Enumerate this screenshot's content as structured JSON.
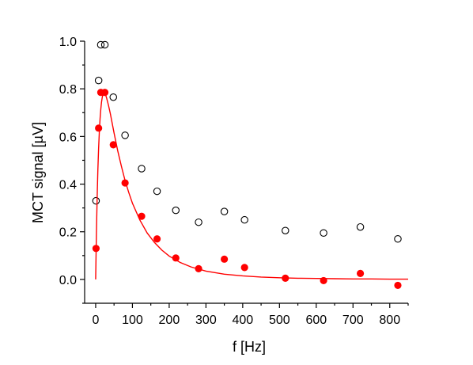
{
  "chart_data": {
    "type": "scatter",
    "title": "",
    "xlabel": "f  [Hz]",
    "ylabel": "MCT signal  [µV]",
    "xlim": [
      -30,
      850
    ],
    "ylim": [
      -0.1,
      1.0
    ],
    "xticks": [
      0,
      100,
      200,
      300,
      400,
      500,
      600,
      700,
      800
    ],
    "yticks": [
      0.0,
      0.2,
      0.4,
      0.6,
      0.8,
      1.0
    ],
    "grid": false,
    "legend": "none",
    "series": [
      {
        "marker": "open-circle",
        "color": "#000000",
        "x": [
          1,
          8,
          14,
          25,
          48,
          80,
          125,
          167,
          218,
          280,
          350,
          405,
          516,
          620,
          720,
          822
        ],
        "y": [
          0.33,
          0.835,
          0.985,
          0.985,
          0.765,
          0.605,
          0.465,
          0.37,
          0.29,
          0.24,
          0.285,
          0.25,
          0.205,
          0.195,
          0.22,
          0.17
        ]
      },
      {
        "marker": "filled-circle",
        "color": "#ff0000",
        "x": [
          1,
          8,
          14,
          25,
          48,
          80,
          125,
          167,
          218,
          280,
          350,
          405,
          516,
          620,
          720,
          822
        ],
        "y": [
          0.13,
          0.635,
          0.785,
          0.785,
          0.565,
          0.405,
          0.265,
          0.17,
          0.09,
          0.045,
          0.085,
          0.05,
          0.005,
          -0.005,
          0.025,
          -0.025
        ]
      },
      {
        "type": "line",
        "color": "#ff0000",
        "x": [
          0,
          2,
          4,
          6,
          8,
          10,
          12,
          14,
          16,
          18,
          20,
          22,
          24,
          26,
          28,
          30,
          35,
          40,
          45,
          50,
          60,
          70,
          80,
          90,
          100,
          120,
          140,
          160,
          180,
          200,
          230,
          260,
          300,
          350,
          400,
          450,
          500,
          550,
          600,
          650,
          700,
          750,
          800,
          850
        ],
        "y": [
          0.0,
          0.19,
          0.34,
          0.46,
          0.55,
          0.62,
          0.675,
          0.715,
          0.745,
          0.765,
          0.778,
          0.785,
          0.785,
          0.78,
          0.77,
          0.76,
          0.73,
          0.695,
          0.655,
          0.615,
          0.54,
          0.475,
          0.415,
          0.365,
          0.32,
          0.25,
          0.195,
          0.155,
          0.123,
          0.098,
          0.071,
          0.052,
          0.035,
          0.022,
          0.015,
          0.01,
          0.007,
          0.005,
          0.004,
          0.003,
          0.002,
          0.002,
          0.001,
          0.001
        ]
      }
    ]
  }
}
